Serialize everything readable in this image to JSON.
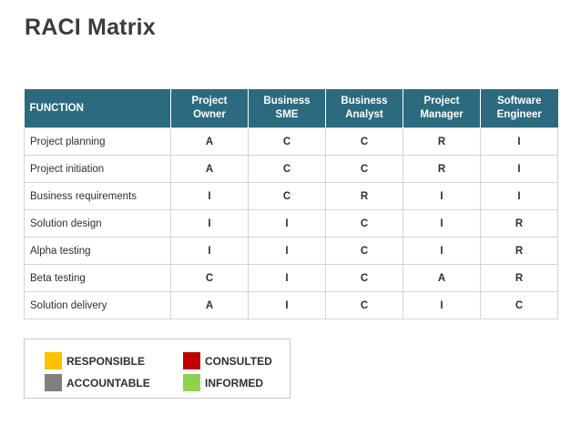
{
  "title": "RACI Matrix",
  "table": {
    "headers": [
      "FUNCTION",
      "Project\nOwner",
      "Business SME",
      "Business\nAnalyst",
      "Project\nManager",
      "Software\nEngineer"
    ],
    "rows": [
      {
        "function": "Project planning",
        "values": [
          "A",
          "C",
          "C",
          "R",
          "I"
        ]
      },
      {
        "function": "Project initiation",
        "values": [
          "A",
          "C",
          "C",
          "R",
          "I"
        ]
      },
      {
        "function": "Business requirements",
        "values": [
          "I",
          "C",
          "R",
          "I",
          "I"
        ]
      },
      {
        "function": "Solution design",
        "values": [
          "I",
          "I",
          "C",
          "I",
          "R"
        ]
      },
      {
        "function": "Alpha testing",
        "values": [
          "I",
          "I",
          "C",
          "I",
          "R"
        ]
      },
      {
        "function": "Beta testing",
        "values": [
          "C",
          "I",
          "C",
          "A",
          "R"
        ]
      },
      {
        "function": "Solution delivery",
        "values": [
          "A",
          "I",
          "C",
          "I",
          "C"
        ]
      }
    ]
  },
  "legend": {
    "responsible": {
      "label": "RESPONSIBLE",
      "color": "#ffc000"
    },
    "accountable": {
      "label": "ACCOUNTABLE",
      "color": "#808080"
    },
    "consulted": {
      "label": "CONSULTED",
      "color": "#c00000"
    },
    "informed": {
      "label": "INFORMED",
      "color": "#92d050"
    }
  },
  "colors": {
    "header_bg": "#2c6b7f",
    "R": "#c6a20a",
    "A": "#555555",
    "C": "#c00000",
    "I": "#7dbb2b"
  }
}
